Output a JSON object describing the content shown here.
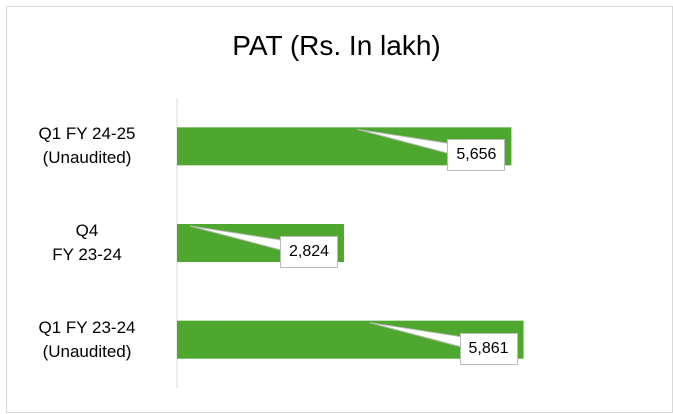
{
  "chart_data": {
    "type": "bar",
    "orientation": "horizontal",
    "title": "PAT (Rs. In lakh)",
    "categories": [
      "Q1 FY 24-25\n(Unaudited)",
      "Q4\nFY 23-24",
      "Q1 FY 23-24\n(Unaudited)"
    ],
    "values": [
      5656,
      2824,
      5861
    ],
    "value_labels": [
      "5,656",
      "2,824",
      "5,861"
    ],
    "color": "#4ea72e",
    "xlim": [
      0,
      8000
    ]
  }
}
